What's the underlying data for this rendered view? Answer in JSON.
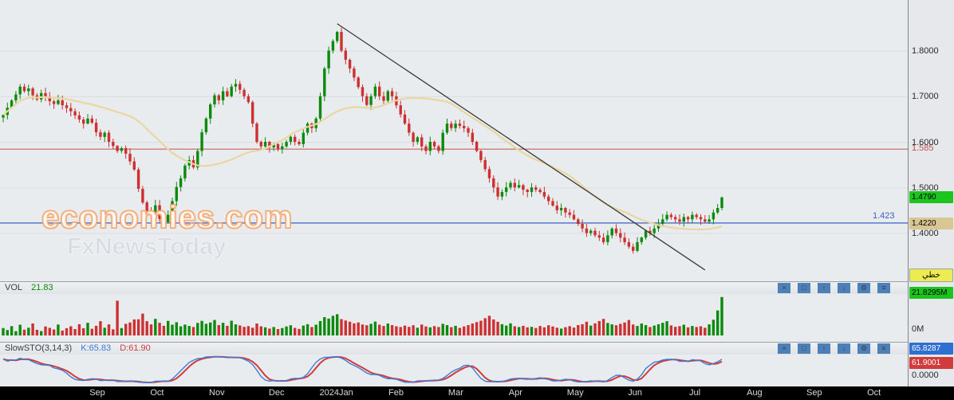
{
  "watermark": {
    "line1": "economies.com",
    "line2": "FxNewsToday"
  },
  "volume_pane": {
    "label": "VOL",
    "value": "21.83"
  },
  "sto_pane": {
    "title": "SlowSTO(3,14,3)",
    "k_text": "K:65.83",
    "d_text": "D:61.90"
  },
  "price_axis": {
    "resistance_label": "1.585",
    "support_label": "1.423",
    "last_price_badge": "1.4790",
    "ma_value_badge": "1.4220",
    "scale_mode_badge": "خطي",
    "volume_badge": "21.8295M",
    "volume_zero_label": "0M",
    "sto_k_badge": "65.8287",
    "sto_d_badge": "61.9001",
    "sto_zero_label": "0.0000"
  },
  "pane_toolbar": {
    "icons": [
      {
        "name": "close-icon",
        "glyph": "×"
      },
      {
        "name": "restore-icon",
        "glyph": "□"
      },
      {
        "name": "arrow-up-icon",
        "glyph": "↑"
      },
      {
        "name": "arrow-down-icon",
        "glyph": "↓"
      },
      {
        "name": "settings-icon",
        "glyph": "⚙"
      },
      {
        "name": "menu-icon",
        "glyph": "≡"
      }
    ]
  },
  "colors": {
    "background": "#e9ecef",
    "axis_background": "#e6e8eb",
    "up": "#0c8a0c",
    "down": "#cc3030",
    "ma_line": "#e9d6a0",
    "trendline": "#3a3a3a",
    "resistance_line": "#c0504d",
    "support_line": "#3c5fc0",
    "k_line": "#3b7dd8",
    "d_line": "#d23b3b",
    "badge_green": "#1ec41e",
    "badge_tan": "#d8c693",
    "badge_blue": "#2f6fd0",
    "badge_red": "#d23b3b",
    "badge_yellow": "#ecec52",
    "toolbar_icon_bg": "#4d80b8"
  },
  "chart_data": {
    "type": "candlestick",
    "months": [
      "Sep",
      "Oct",
      "Nov",
      "Dec",
      "2024Jan",
      "Feb",
      "Mar",
      "Apr",
      "May",
      "Jun",
      "Jul",
      "Aug",
      "Sep",
      "Oct"
    ],
    "price": {
      "ylim": [
        1.297,
        1.912
      ],
      "ticks": [
        1.8,
        1.7,
        1.6,
        1.5,
        1.4
      ],
      "levels": {
        "resistance": 1.585,
        "support": 1.423
      },
      "last": 1.479,
      "ma_last": 1.422,
      "ma_window": 30,
      "trendline": {
        "from_index": 79,
        "from_price": 1.86,
        "to_index": 166,
        "to_price": 1.32
      },
      "closes": [
        1.66,
        1.676,
        1.692,
        1.705,
        1.722,
        1.712,
        1.718,
        1.703,
        1.694,
        1.708,
        1.7,
        1.69,
        1.684,
        1.692,
        1.681,
        1.675,
        1.668,
        1.659,
        1.65,
        1.641,
        1.652,
        1.643,
        1.622,
        1.612,
        1.621,
        1.601,
        1.592,
        1.581,
        1.587,
        1.575,
        1.558,
        1.54,
        1.498,
        1.468,
        1.45,
        1.441,
        1.462,
        1.432,
        1.425,
        1.441,
        1.471,
        1.502,
        1.521,
        1.549,
        1.561,
        1.545,
        1.581,
        1.622,
        1.652,
        1.683,
        1.703,
        1.692,
        1.712,
        1.701,
        1.722,
        1.728,
        1.715,
        1.701,
        1.688,
        1.641,
        1.601,
        1.591,
        1.601,
        1.589,
        1.596,
        1.585,
        1.591,
        1.601,
        1.612,
        1.601,
        1.596,
        1.621,
        1.641,
        1.631,
        1.652,
        1.701,
        1.762,
        1.801,
        1.822,
        1.842,
        1.801,
        1.781,
        1.762,
        1.742,
        1.721,
        1.701,
        1.682,
        1.701,
        1.722,
        1.701,
        1.691,
        1.712,
        1.701,
        1.681,
        1.661,
        1.641,
        1.621,
        1.601,
        1.611,
        1.591,
        1.581,
        1.601,
        1.591,
        1.581,
        1.621,
        1.641,
        1.631,
        1.641,
        1.636,
        1.631,
        1.621,
        1.601,
        1.581,
        1.561,
        1.541,
        1.521,
        1.501,
        1.481,
        1.491,
        1.501,
        1.511,
        1.501,
        1.506,
        1.496,
        1.491,
        1.501,
        1.496,
        1.491,
        1.481,
        1.471,
        1.461,
        1.451,
        1.456,
        1.446,
        1.441,
        1.431,
        1.421,
        1.411,
        1.401,
        1.406,
        1.396,
        1.391,
        1.381,
        1.396,
        1.411,
        1.401,
        1.391,
        1.381,
        1.371,
        1.362,
        1.381,
        1.391,
        1.406,
        1.401,
        1.411,
        1.421,
        1.431,
        1.441,
        1.436,
        1.431,
        1.426,
        1.436,
        1.431,
        1.441,
        1.436,
        1.431,
        1.426,
        1.431,
        1.446,
        1.456,
        1.479
      ]
    },
    "volume": {
      "ylim": [
        0,
        24
      ],
      "unit": "M",
      "last": 21.8295,
      "values": [
        4.2,
        3.1,
        5.3,
        2.4,
        6.1,
        3.3,
        4.4,
        6.8,
        3.2,
        2.5,
        5.1,
        4.3,
        3.4,
        6.2,
        2.8,
        4.1,
        5.2,
        3.6,
        6.4,
        4.1,
        7.2,
        3.8,
        5.5,
        8.1,
        4.4,
        6.3,
        3.5,
        19.8,
        4.2,
        6.6,
        7.4,
        9.1,
        9.2,
        12.4,
        8.1,
        6.3,
        9.4,
        7.2,
        5.5,
        8.3,
        6.1,
        7.5,
        5.2,
        6.2,
        5.4,
        4.8,
        7.1,
        8.3,
        6.6,
        7.4,
        8.8,
        5.9,
        7.2,
        5.5,
        8.4,
        6.3,
        5.7,
        4.9,
        5.3,
        4.4,
        6.8,
        5.2,
        4.6,
        3.9,
        4.8,
        3.6,
        4.2,
        5.1,
        5.8,
        4.3,
        3.7,
        5.6,
        6.4,
        4.8,
        6.1,
        8.2,
        10.4,
        9.6,
        11.2,
        12.1,
        9.3,
        8.5,
        7.8,
        6.9,
        7.4,
        6.2,
        5.8,
        6.6,
        7.9,
        6.1,
        5.4,
        6.8,
        5.9,
        5.2,
        4.8,
        5.6,
        4.9,
        5.8,
        4.4,
        6.2,
        5.1,
        4.6,
        5.3,
        4.8,
        6.6,
        5.9,
        4.7,
        5.5,
        4.3,
        5.1,
        5.9,
        6.8,
        7.6,
        8.4,
        9.8,
        11.2,
        9.1,
        7.8,
        6.4,
        5.6,
        6.9,
        5.2,
        4.8,
        5.5,
        4.6,
        4.9,
        4.2,
        5.4,
        4.6,
        5.8,
        5.1,
        4.4,
        3.9,
        4.7,
        5.3,
        4.5,
        5.9,
        6.4,
        7.8,
        5.6,
        6.9,
        8.2,
        9.4,
        7.1,
        6.3,
        5.8,
        6.6,
        7.4,
        8.8,
        6.2,
        5.4,
        6.8,
        5.9,
        4.8,
        5.6,
        6.4,
        7.2,
        8.1,
        5.7,
        4.9,
        5.3,
        6.1,
        4.6,
        5.4,
        4.8,
        5.2,
        4.4,
        6.3,
        8.9,
        14.2,
        21.83
      ]
    },
    "stochastic": {
      "params": [
        3,
        14,
        3
      ],
      "k_last": 65.8287,
      "d_last": 61.9001,
      "range": [
        0,
        100
      ]
    }
  }
}
